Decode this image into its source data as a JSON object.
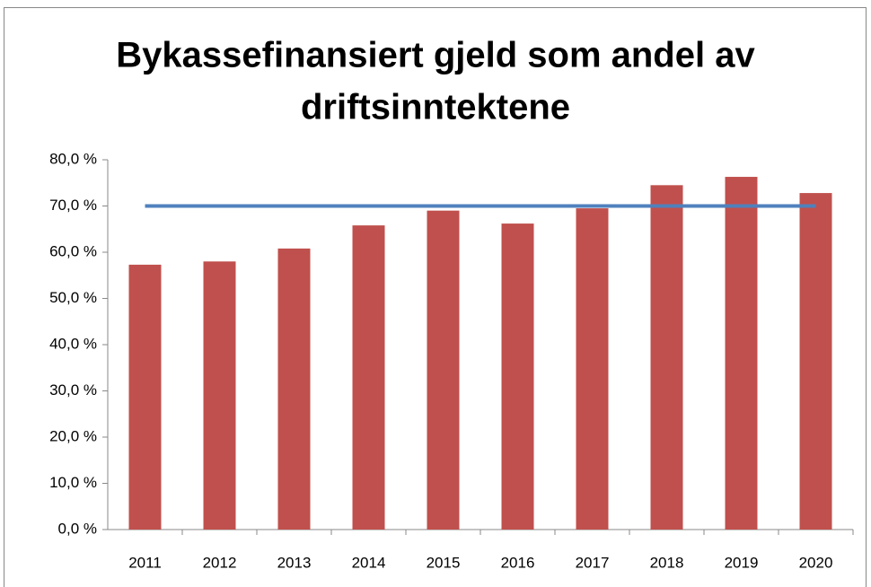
{
  "chart_data": {
    "type": "bar",
    "title": [
      "Bykassefinansiert gjeld som andel av",
      "driftsinntektene"
    ],
    "categories": [
      "2011",
      "2012",
      "2013",
      "2014",
      "2015",
      "2016",
      "2017",
      "2018",
      "2019",
      "2020"
    ],
    "series": [
      {
        "type": "bar",
        "color": "#c0504d",
        "values": [
          57.3,
          58.0,
          60.8,
          65.8,
          69.0,
          66.2,
          69.5,
          74.5,
          76.3,
          72.8
        ]
      },
      {
        "type": "line",
        "color": "#4f81bd",
        "values": [
          70,
          70,
          70,
          70,
          70,
          70,
          70,
          70,
          70,
          70
        ]
      }
    ],
    "ylim": [
      0,
      80
    ],
    "yticks": [
      {
        "value": 0,
        "label": "0,0 %"
      },
      {
        "value": 10,
        "label": "10,0 %"
      },
      {
        "value": 20,
        "label": "20,0 %"
      },
      {
        "value": 30,
        "label": "30,0 %"
      },
      {
        "value": 40,
        "label": "40,0 %"
      },
      {
        "value": 50,
        "label": "50,0 %"
      },
      {
        "value": 60,
        "label": "60,0 %"
      },
      {
        "value": 70,
        "label": "70,0 %"
      },
      {
        "value": 80,
        "label": "80,0 %"
      }
    ],
    "grid": false
  }
}
